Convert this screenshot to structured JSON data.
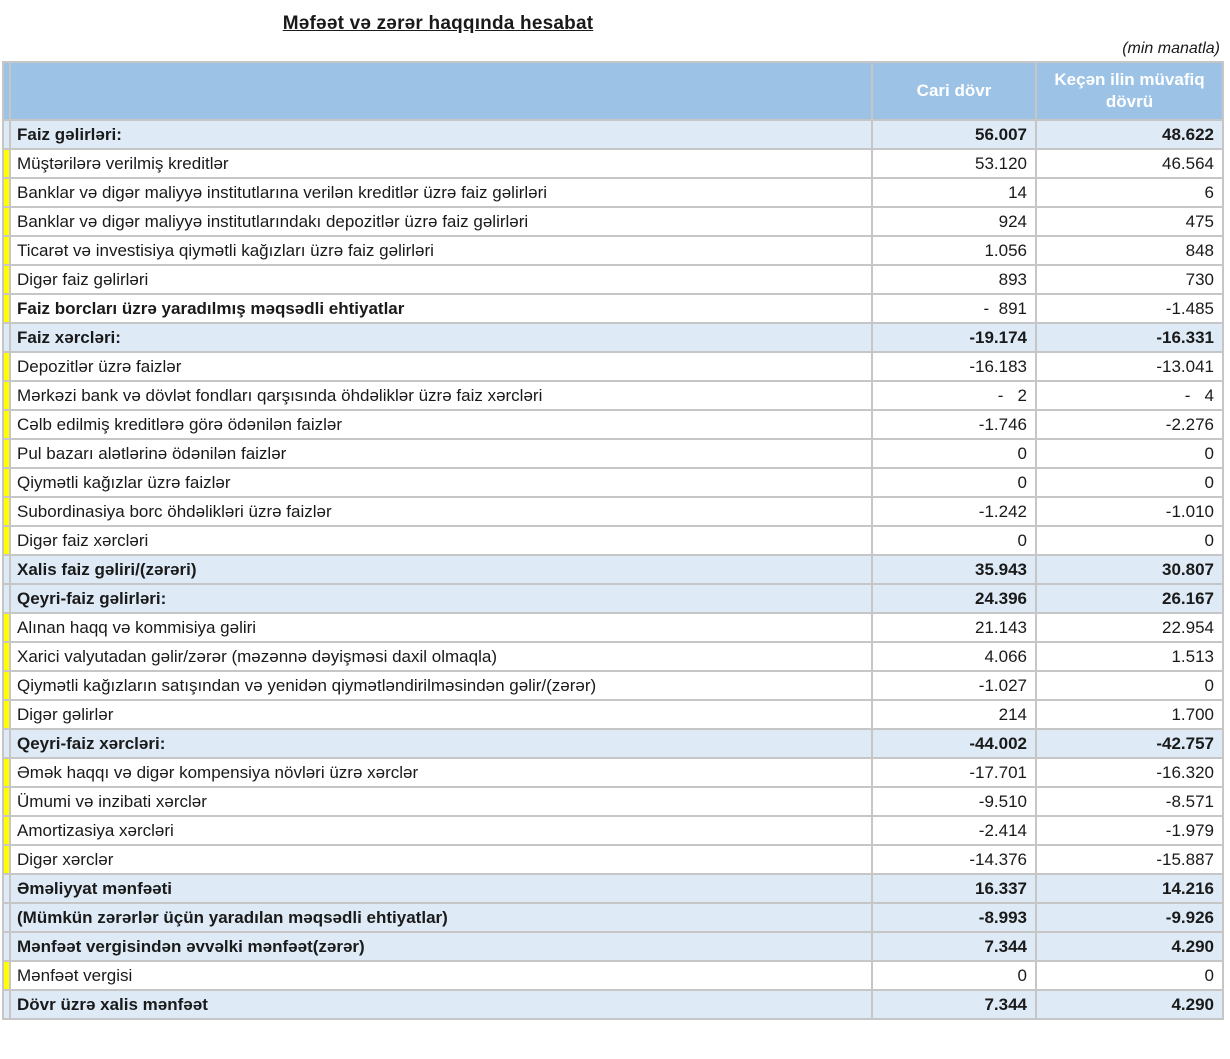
{
  "page": {
    "title": "Məfəət və zərər haqqında hesabat",
    "unit_note": "(min manatla)"
  },
  "colors": {
    "header_bg": "#9cc2e5",
    "header_text": "#ffffff",
    "subtotal_row_bg": "#deebf7",
    "detail_marker": "#ffff00",
    "border": "#c6c6c6"
  },
  "table": {
    "columns": {
      "label": "",
      "current": "Cari dövr",
      "previous": "Keçən ilin müvafiq dövrü"
    },
    "rows": [
      {
        "label": "Faiz gəlirləri:",
        "current": "56.007",
        "previous": "48.622",
        "style": "subtotal"
      },
      {
        "label": "Müştərilərə verilmiş kreditlər",
        "current": "53.120",
        "previous": "46.564",
        "style": "detail"
      },
      {
        "label": "Banklar və digər maliyyə institutlarına verilən kreditlər üzrə faiz gəlirləri",
        "current": "14",
        "previous": "6",
        "style": "detail"
      },
      {
        "label": "Banklar və digər maliyyə institutlarındakı depozitlər üzrə faiz gəlirləri",
        "current": "924",
        "previous": "475",
        "style": "detail"
      },
      {
        "label": "Ticarət və investisiya qiymətli kağızları üzrə faiz gəlirləri",
        "current": "1.056",
        "previous": "848",
        "style": "detail"
      },
      {
        "label": "Digər faiz gəlirləri",
        "current": "893",
        "previous": "730",
        "style": "detail"
      },
      {
        "label": "Faiz borcları üzrə yaradılmış məqsədli ehtiyatlar",
        "current": "-  891",
        "previous": "-1.485",
        "style": "detail-bold"
      },
      {
        "label": "Faiz xərcləri:",
        "current": "-19.174",
        "previous": "-16.331",
        "style": "subtotal"
      },
      {
        "label": "Depozitlər üzrə faizlər",
        "current": "-16.183",
        "previous": "-13.041",
        "style": "detail"
      },
      {
        "label": "Mərkəzi bank və dövlət fondları qarşısında öhdəliklər üzrə faiz xərcləri",
        "current": "-   2",
        "previous": "-   4",
        "style": "detail"
      },
      {
        "label": "Cəlb edilmiş kreditlərə görə ödənilən faizlər",
        "current": "-1.746",
        "previous": "-2.276",
        "style": "detail"
      },
      {
        "label": "Pul bazarı alətlərinə ödənilən faizlər",
        "current": "0",
        "previous": "0",
        "style": "detail"
      },
      {
        "label": "Qiymətli kağızlar üzrə faizlər",
        "current": "0",
        "previous": "0",
        "style": "detail"
      },
      {
        "label": "Subordinasiya borc öhdəlikləri üzrə faizlər",
        "current": "-1.242",
        "previous": "-1.010",
        "style": "detail"
      },
      {
        "label": "Digər faiz xərcləri",
        "current": "0",
        "previous": "0",
        "style": "detail"
      },
      {
        "label": "Xalis faiz gəliri/(zərəri)",
        "current": "35.943",
        "previous": "30.807",
        "style": "subtotal"
      },
      {
        "label": "Qeyri-faiz gəlirləri:",
        "current": "24.396",
        "previous": "26.167",
        "style": "subtotal"
      },
      {
        "label": "Alınan haqq və kommisiya gəliri",
        "current": "21.143",
        "previous": "22.954",
        "style": "detail"
      },
      {
        "label": "Xarici valyutadan gəlir/zərər (məzənnə dəyişməsi daxil olmaqla)",
        "current": "4.066",
        "previous": "1.513",
        "style": "detail"
      },
      {
        "label": "Qiymətli kağızların satışından və yenidən qiymətləndirilməsindən gəlir/(zərər)",
        "current": "-1.027",
        "previous": "0",
        "style": "detail"
      },
      {
        "label": "Digər gəlirlər",
        "current": "214",
        "previous": "1.700",
        "style": "detail"
      },
      {
        "label": "Qeyri-faiz xərcləri:",
        "current": "-44.002",
        "previous": "-42.757",
        "style": "subtotal"
      },
      {
        "label": "Əmək haqqı və digər kompensiya növləri üzrə xərclər",
        "current": "-17.701",
        "previous": "-16.320",
        "style": "detail"
      },
      {
        "label": "Ümumi və inzibati xərclər",
        "current": "-9.510",
        "previous": "-8.571",
        "style": "detail"
      },
      {
        "label": "Amortizasiya xərcləri",
        "current": "-2.414",
        "previous": "-1.979",
        "style": "detail"
      },
      {
        "label": "Digər xərclər",
        "current": "-14.376",
        "previous": "-15.887",
        "style": "detail"
      },
      {
        "label": "Əməliyyat mənfəəti",
        "current": "16.337",
        "previous": "14.216",
        "style": "subtotal"
      },
      {
        "label": "(Mümkün zərərlər üçün yaradılan məqsədli ehtiyatlar)",
        "current": "-8.993",
        "previous": "-9.926",
        "style": "subtotal"
      },
      {
        "label": "Mənfəət vergisindən əvvəlki mənfəət(zərər)",
        "current": "7.344",
        "previous": "4.290",
        "style": "subtotal"
      },
      {
        "label": "Mənfəət vergisi",
        "current": "0",
        "previous": "0",
        "style": "detail"
      },
      {
        "label": "Dövr üzrə xalis mənfəət",
        "current": "7.344",
        "previous": "4.290",
        "style": "subtotal"
      }
    ]
  }
}
